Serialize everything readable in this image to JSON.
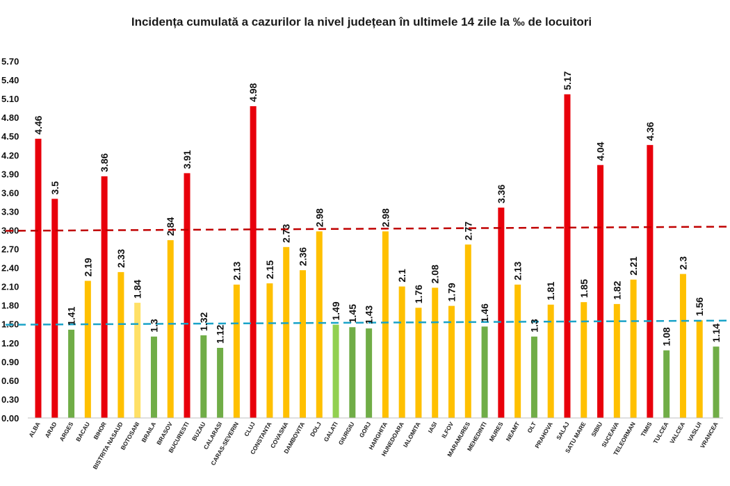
{
  "chart_data": {
    "type": "bar",
    "title": "Incidența cumulată a cazurilor la nivel județean în ultimele 14 zile la ‰ de locuitori",
    "xlabel": "",
    "ylabel": "",
    "ylim": [
      0,
      5.7
    ],
    "yticks": [
      "0.00",
      "0.30",
      "0.60",
      "0.90",
      "1.20",
      "1.50",
      "1.80",
      "2.10",
      "2.40",
      "2.70",
      "3.00",
      "3.30",
      "3.60",
      "3.90",
      "4.20",
      "4.50",
      "4.80",
      "5.10",
      "5.40",
      "5.70"
    ],
    "grid": false,
    "legend": "none",
    "categories": [
      "ALBA",
      "ARAD",
      "ARGES",
      "BACAU",
      "BIHOR",
      "BISTRITA NASAUD",
      "BOTOSANI",
      "BRAILA",
      "BRASOV",
      "BUCURESTI",
      "BUZAU",
      "CALARASI",
      "CARAS-SEVERIN",
      "CLUJ",
      "CONSTANTA",
      "COVASNA",
      "DAMBOVITA",
      "DOLJ",
      "GALATI",
      "GIURGIU",
      "GORJ",
      "HARGHITA",
      "HUNEDOARA",
      "IALOMITA",
      "IASI",
      "ILFOV",
      "MARAMURES",
      "MEHEDINTI",
      "MURES",
      "NEAMT",
      "OLT",
      "PRAHOVA",
      "SALAJ",
      "SATU MARE",
      "SIBIU",
      "SUCEAVA",
      "TELEORMAN",
      "TIMIS",
      "TULCEA",
      "VALCEA",
      "VASLUI",
      "VRANCEA"
    ],
    "values": [
      4.46,
      3.5,
      1.41,
      2.19,
      3.86,
      2.33,
      1.84,
      1.3,
      2.84,
      3.91,
      1.32,
      1.12,
      2.13,
      4.98,
      2.15,
      2.73,
      2.36,
      2.98,
      1.49,
      1.45,
      1.43,
      2.98,
      2.1,
      1.76,
      2.08,
      1.79,
      2.77,
      1.46,
      3.36,
      2.13,
      1.3,
      1.81,
      5.17,
      1.85,
      4.04,
      1.82,
      2.21,
      4.36,
      1.08,
      2.3,
      1.56,
      1.14
    ],
    "value_labels": [
      "4.46",
      "3.5",
      "1.41",
      "2.19",
      "3.86",
      "2.33",
      "1.84",
      "1.3",
      "2.84",
      "3.91",
      "1.32",
      "1.12",
      "2.13",
      "4.98",
      "2.15",
      "2.73",
      "2.36",
      "2.98",
      "1.49",
      "1.45",
      "1.43",
      "2.98",
      "2.1",
      "1.76",
      "2.08",
      "1.79",
      "2.77",
      "1.46",
      "3.36",
      "2.13",
      "1.3",
      "1.81",
      "5.17",
      "1.85",
      "4.04",
      "1.82",
      "2.21",
      "4.36",
      "1.08",
      "2.3",
      "1.56",
      "1.14"
    ],
    "bar_colors": [
      "#e8000b",
      "#e8000b",
      "#70ad47",
      "#ffc000",
      "#e8000b",
      "#ffc000",
      "#ffe066",
      "#70ad47",
      "#ffc000",
      "#e8000b",
      "#70ad47",
      "#70ad47",
      "#ffc000",
      "#e8000b",
      "#ffc000",
      "#ffc000",
      "#ffc000",
      "#ffc000",
      "#92d050",
      "#70ad47",
      "#70ad47",
      "#ffc000",
      "#ffc000",
      "#ffc000",
      "#ffc000",
      "#ffc000",
      "#ffc000",
      "#70ad47",
      "#e8000b",
      "#ffc000",
      "#70ad47",
      "#ffc000",
      "#e8000b",
      "#ffc000",
      "#e8000b",
      "#ffc000",
      "#ffc000",
      "#e8000b",
      "#70ad47",
      "#ffc000",
      "#ffc000",
      "#70ad47"
    ],
    "threshold_lines": [
      {
        "value": 3.0,
        "color": "#c00000",
        "style": "dashed"
      },
      {
        "value": 1.5,
        "color": "#1aa3c8",
        "style": "dashed"
      }
    ]
  }
}
